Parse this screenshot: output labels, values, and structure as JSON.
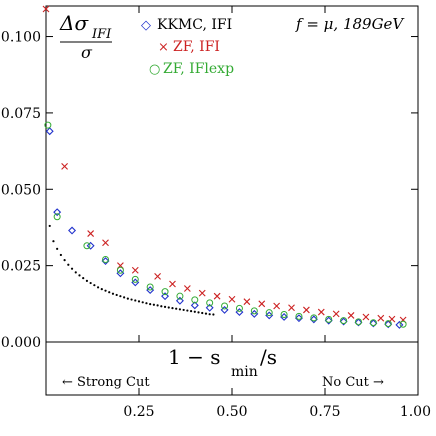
{
  "chart_data": {
    "type": "scatter",
    "xlim": [
      0.0,
      1.0
    ],
    "ylim": [
      0.0,
      0.11
    ],
    "y_tick_labels": [
      "0.000",
      "0.025",
      "0.050",
      "0.075",
      "0.100"
    ],
    "y_tick_values": [
      0.0,
      0.025,
      0.05,
      0.075,
      0.1
    ],
    "x_tick_labels": [
      "0.25",
      "0.50",
      "0.75",
      "1.00"
    ],
    "x_tick_values": [
      0.25,
      0.5,
      0.75,
      1.0
    ],
    "grid": false,
    "legend_placement": "top",
    "ylabel": {
      "numerator": "Δσ",
      "subscript": "IFI",
      "denominator": "σ"
    },
    "xlabel": {
      "prefix": "1 − s",
      "subscript": "min",
      "suffix": "/s"
    },
    "annotation_top_right": "f = μ, 189GeV",
    "annotation_left_arrow": "← Strong Cut",
    "annotation_right_arrow": "No Cut →",
    "series": [
      {
        "name": "KKMC, IFI",
        "marker": "diamond",
        "color": "#2233cc",
        "x": [
          0.01,
          0.03,
          0.07,
          0.12,
          0.16,
          0.2,
          0.24,
          0.28,
          0.32,
          0.36,
          0.4,
          0.44,
          0.48,
          0.52,
          0.56,
          0.6,
          0.64,
          0.68,
          0.72,
          0.76,
          0.8,
          0.84,
          0.88,
          0.92,
          0.95
        ],
        "y": [
          0.069,
          0.0425,
          0.0365,
          0.0315,
          0.0265,
          0.0225,
          0.0195,
          0.017,
          0.015,
          0.0135,
          0.012,
          0.0112,
          0.0105,
          0.0098,
          0.0092,
          0.0087,
          0.0082,
          0.0078,
          0.0074,
          0.007,
          0.0067,
          0.0064,
          0.0061,
          0.0058,
          0.0056
        ]
      },
      {
        "name": "ZF, IFI",
        "marker": "cross",
        "color": "#cc2222",
        "x": [
          0.0,
          0.05,
          0.12,
          0.16,
          0.2,
          0.24,
          0.3,
          0.34,
          0.38,
          0.42,
          0.46,
          0.5,
          0.54,
          0.58,
          0.62,
          0.66,
          0.7,
          0.74,
          0.78,
          0.82,
          0.86,
          0.9,
          0.93,
          0.96
        ],
        "y": [
          0.11,
          0.0575,
          0.0355,
          0.0325,
          0.025,
          0.0235,
          0.0215,
          0.019,
          0.0175,
          0.016,
          0.015,
          0.014,
          0.0132,
          0.0125,
          0.0118,
          0.0112,
          0.0105,
          0.0098,
          0.0092,
          0.0087,
          0.0082,
          0.0078,
          0.0075,
          0.0072
        ]
      },
      {
        "name": "ZF, IFlexp",
        "marker": "circle",
        "color": "#33aa33",
        "x": [
          0.005,
          0.03,
          0.11,
          0.16,
          0.2,
          0.24,
          0.28,
          0.32,
          0.36,
          0.4,
          0.44,
          0.48,
          0.52,
          0.56,
          0.6,
          0.64,
          0.68,
          0.72,
          0.76,
          0.8,
          0.84,
          0.88,
          0.92,
          0.96
        ],
        "y": [
          0.071,
          0.041,
          0.0315,
          0.027,
          0.0235,
          0.0205,
          0.018,
          0.0165,
          0.015,
          0.0138,
          0.0128,
          0.0118,
          0.011,
          0.0102,
          0.0096,
          0.009,
          0.0084,
          0.0079,
          0.0074,
          0.007,
          0.0066,
          0.0063,
          0.006,
          0.0058
        ]
      },
      {
        "name": "",
        "marker": "dot",
        "color": "#000000",
        "x": [
          0.01,
          0.02,
          0.03,
          0.04,
          0.05,
          0.06,
          0.07,
          0.08,
          0.09,
          0.1,
          0.11,
          0.12,
          0.13,
          0.14,
          0.15,
          0.16,
          0.17,
          0.18,
          0.19,
          0.2,
          0.21,
          0.22,
          0.23,
          0.24,
          0.25,
          0.26,
          0.27,
          0.28,
          0.29,
          0.3,
          0.31,
          0.32,
          0.33,
          0.34,
          0.35,
          0.36,
          0.37,
          0.38,
          0.39,
          0.4,
          0.41,
          0.42,
          0.43,
          0.44,
          0.45
        ],
        "y": [
          0.038,
          0.033,
          0.0305,
          0.0285,
          0.0268,
          0.0253,
          0.024,
          0.0228,
          0.0218,
          0.0209,
          0.02,
          0.0193,
          0.0186,
          0.0179,
          0.0173,
          0.0168,
          0.0163,
          0.0158,
          0.0154,
          0.015,
          0.0146,
          0.0142,
          0.0139,
          0.0136,
          0.0133,
          0.013,
          0.0127,
          0.0124,
          0.0122,
          0.012,
          0.0117,
          0.0115,
          0.0113,
          0.0111,
          0.0109,
          0.0107,
          0.0105,
          0.0103,
          0.0101,
          0.0099,
          0.0097,
          0.0095,
          0.0093,
          0.0091,
          0.009
        ]
      }
    ]
  }
}
